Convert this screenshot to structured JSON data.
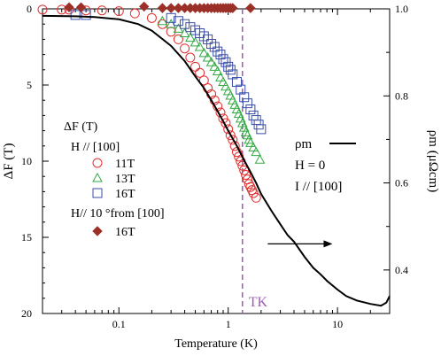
{
  "chart_data": {
    "type": "scatter",
    "title": "",
    "xlabel": "Temperature (K)",
    "xscale": "log",
    "xlim": [
      0.02,
      30
    ],
    "x_ticks": [
      0.1,
      1,
      10
    ],
    "x_tick_labels": [
      "0.1",
      "1",
      "10"
    ],
    "y_left": {
      "label": "ΔF (T)",
      "lim": [
        0,
        20
      ],
      "inverted": true,
      "ticks": [
        0,
        5,
        10,
        15,
        20
      ],
      "tick_labels": [
        "0",
        "5",
        "10",
        "15",
        "20"
      ]
    },
    "y_right": {
      "label": "ρm (μΩcm)",
      "lim": [
        0.3,
        1.0
      ],
      "ticks": [
        0.4,
        0.6,
        0.8,
        1.0
      ],
      "tick_labels": [
        "0.4",
        "0.6",
        "0.8",
        "1.0"
      ]
    },
    "grid": false,
    "legend_left": {
      "title_line1": "ΔF (T)",
      "title_line2": "H // [100]",
      "group2_title": "H// 10 °from [100]"
    },
    "legend_right": {
      "rho_label": "ρm",
      "line2": "H = 0",
      "line3": "I // [100]"
    },
    "vline": {
      "x": 1.35,
      "label": "TK",
      "color": "#a05bb5"
    },
    "arrow": {
      "from_x": 2.3,
      "to_x": 9.0,
      "at_right_value": 0.46,
      "direction": "right"
    },
    "series": [
      {
        "name": "11T",
        "marker": "circle",
        "color": "#e03030",
        "axis": "left",
        "x": [
          0.02,
          0.03,
          0.035,
          0.05,
          0.07,
          0.1,
          0.14,
          0.2,
          0.25,
          0.3,
          0.35,
          0.4,
          0.45,
          0.5,
          0.55,
          0.6,
          0.65,
          0.7,
          0.75,
          0.8,
          0.85,
          0.9,
          0.95,
          1.0,
          1.05,
          1.1,
          1.15,
          1.2,
          1.25,
          1.3,
          1.35,
          1.4,
          1.45,
          1.5,
          1.55,
          1.6,
          1.65,
          1.7,
          1.8
        ],
        "y": [
          0.05,
          0.05,
          0.05,
          0.1,
          0.1,
          0.15,
          0.3,
          0.6,
          1.0,
          1.5,
          2.0,
          2.6,
          3.2,
          3.8,
          4.2,
          4.7,
          5.2,
          5.6,
          6.0,
          6.4,
          6.8,
          7.2,
          7.5,
          7.9,
          8.3,
          8.6,
          9.0,
          9.4,
          9.7,
          10.0,
          10.3,
          10.6,
          10.9,
          11.2,
          11.5,
          11.7,
          11.9,
          12.1,
          12.4
        ]
      },
      {
        "name": "13T",
        "marker": "triangle",
        "color": "#33aa44",
        "axis": "left",
        "x": [
          0.25,
          0.3,
          0.35,
          0.4,
          0.45,
          0.5,
          0.55,
          0.6,
          0.65,
          0.7,
          0.75,
          0.8,
          0.85,
          0.9,
          0.95,
          1.0,
          1.05,
          1.1,
          1.15,
          1.2,
          1.25,
          1.3,
          1.35,
          1.4,
          1.45,
          1.5,
          1.55,
          1.6,
          1.7,
          1.8,
          1.95
        ],
        "y": [
          0.8,
          1.0,
          1.3,
          1.6,
          1.9,
          2.2,
          2.5,
          2.9,
          3.2,
          3.5,
          3.8,
          4.1,
          4.5,
          4.8,
          5.1,
          5.4,
          5.7,
          6.0,
          6.3,
          6.6,
          6.9,
          7.2,
          7.5,
          7.8,
          8.1,
          8.3,
          8.6,
          8.8,
          9.1,
          9.4,
          9.9
        ]
      },
      {
        "name": "16T",
        "marker": "square",
        "color": "#3a4ea8",
        "axis": "left",
        "x": [
          0.04,
          0.05,
          0.3,
          0.35,
          0.4,
          0.45,
          0.5,
          0.55,
          0.6,
          0.65,
          0.7,
          0.75,
          0.8,
          0.85,
          0.9,
          0.95,
          1.0,
          1.05,
          1.1,
          1.2,
          1.3,
          1.4,
          1.5,
          1.6,
          1.7,
          1.8,
          1.9,
          2.0
        ],
        "y": [
          0.4,
          0.4,
          0.6,
          0.8,
          1.0,
          1.2,
          1.4,
          1.6,
          1.8,
          2.0,
          2.3,
          2.5,
          2.8,
          3.0,
          3.3,
          3.5,
          3.8,
          4.0,
          4.3,
          4.8,
          5.3,
          5.8,
          6.2,
          6.6,
          7.0,
          7.3,
          7.6,
          7.9
        ]
      },
      {
        "name": "16T",
        "marker": "diamond",
        "color": "#9b3028",
        "axis": "left",
        "x": [
          0.035,
          0.045,
          0.17,
          0.25,
          0.3,
          0.35,
          0.4,
          0.45,
          0.5,
          0.55,
          0.6,
          0.65,
          0.7,
          0.75,
          0.8,
          0.85,
          0.9,
          0.95,
          1.0,
          1.05,
          1.1,
          1.6
        ],
        "y": [
          -0.1,
          -0.1,
          -0.15,
          -0.05,
          -0.05,
          -0.05,
          -0.05,
          -0.05,
          -0.05,
          -0.05,
          -0.05,
          -0.05,
          -0.05,
          -0.05,
          -0.05,
          -0.05,
          -0.05,
          -0.05,
          -0.05,
          -0.05,
          -0.05,
          -0.05
        ]
      },
      {
        "name": "ρm",
        "marker": "line",
        "color": "#000000",
        "axis": "right",
        "x": [
          0.02,
          0.04,
          0.06,
          0.1,
          0.15,
          0.2,
          0.3,
          0.4,
          0.5,
          0.6,
          0.7,
          0.8,
          0.9,
          1.0,
          1.2,
          1.4,
          1.6,
          1.8,
          2.0,
          2.5,
          3.0,
          3.5,
          4.0,
          5.0,
          6.0,
          7.0,
          8.0,
          10.0,
          12.0,
          15.0,
          20.0,
          25.0,
          28.0,
          30.0
        ],
        "y": [
          0.984,
          0.983,
          0.981,
          0.976,
          0.965,
          0.95,
          0.915,
          0.88,
          0.845,
          0.818,
          0.79,
          0.765,
          0.742,
          0.72,
          0.685,
          0.652,
          0.625,
          0.6,
          0.575,
          0.535,
          0.505,
          0.48,
          0.465,
          0.43,
          0.405,
          0.39,
          0.375,
          0.355,
          0.34,
          0.33,
          0.322,
          0.318,
          0.325,
          0.34
        ]
      }
    ]
  }
}
